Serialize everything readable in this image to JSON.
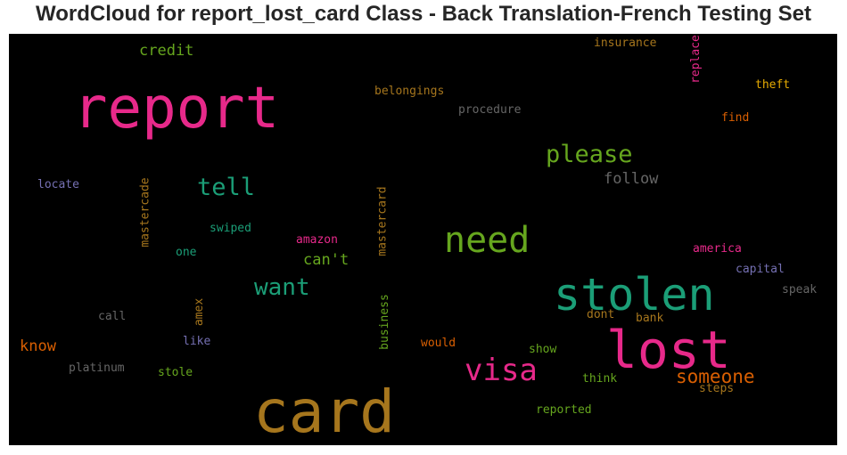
{
  "title": "WordCloud for report_lost_card Class - Back Translation-French Testing Set",
  "palette": {
    "pink": "#e7298a",
    "green": "#1b9e77",
    "lime": "#66a61e",
    "gold": "#a6761d",
    "orange": "#d95f02",
    "purple": "#7570b3",
    "yellow": "#e6ab02",
    "gray": "#666666"
  },
  "words": [
    {
      "text": "report",
      "color": "pink"
    },
    {
      "text": "card",
      "color": "gold"
    },
    {
      "text": "stolen",
      "color": "green"
    },
    {
      "text": "lost",
      "color": "pink"
    },
    {
      "text": "need",
      "color": "lime"
    },
    {
      "text": "visa",
      "color": "pink"
    },
    {
      "text": "please",
      "color": "lime"
    },
    {
      "text": "tell",
      "color": "green"
    },
    {
      "text": "want",
      "color": "green"
    },
    {
      "text": "someone",
      "color": "orange"
    },
    {
      "text": "credit",
      "color": "lime"
    },
    {
      "text": "follow",
      "color": "gray"
    },
    {
      "text": "know",
      "color": "orange"
    },
    {
      "text": "can't",
      "color": "lime"
    },
    {
      "text": "insurance",
      "color": "gold"
    },
    {
      "text": "belongings",
      "color": "gold"
    },
    {
      "text": "procedure",
      "color": "gray"
    },
    {
      "text": "theft",
      "color": "yellow"
    },
    {
      "text": "find",
      "color": "orange"
    },
    {
      "text": "replace",
      "color": "pink"
    },
    {
      "text": "locate",
      "color": "purple"
    },
    {
      "text": "mastercade",
      "color": "gold"
    },
    {
      "text": "mastercard",
      "color": "gold"
    },
    {
      "text": "swiped",
      "color": "green"
    },
    {
      "text": "amazon",
      "color": "pink"
    },
    {
      "text": "one",
      "color": "green"
    },
    {
      "text": "america",
      "color": "pink"
    },
    {
      "text": "capital",
      "color": "purple"
    },
    {
      "text": "speak",
      "color": "gray"
    },
    {
      "text": "call",
      "color": "gray"
    },
    {
      "text": "amex",
      "color": "gold"
    },
    {
      "text": "business",
      "color": "lime"
    },
    {
      "text": "dont",
      "color": "gold"
    },
    {
      "text": "bank",
      "color": "gold"
    },
    {
      "text": "like",
      "color": "purple"
    },
    {
      "text": "would",
      "color": "orange"
    },
    {
      "text": "show",
      "color": "lime"
    },
    {
      "text": "platinum",
      "color": "gray"
    },
    {
      "text": "stole",
      "color": "lime"
    },
    {
      "text": "think",
      "color": "lime"
    },
    {
      "text": "steps",
      "color": "gold"
    },
    {
      "text": "reported",
      "color": "lime"
    }
  ]
}
